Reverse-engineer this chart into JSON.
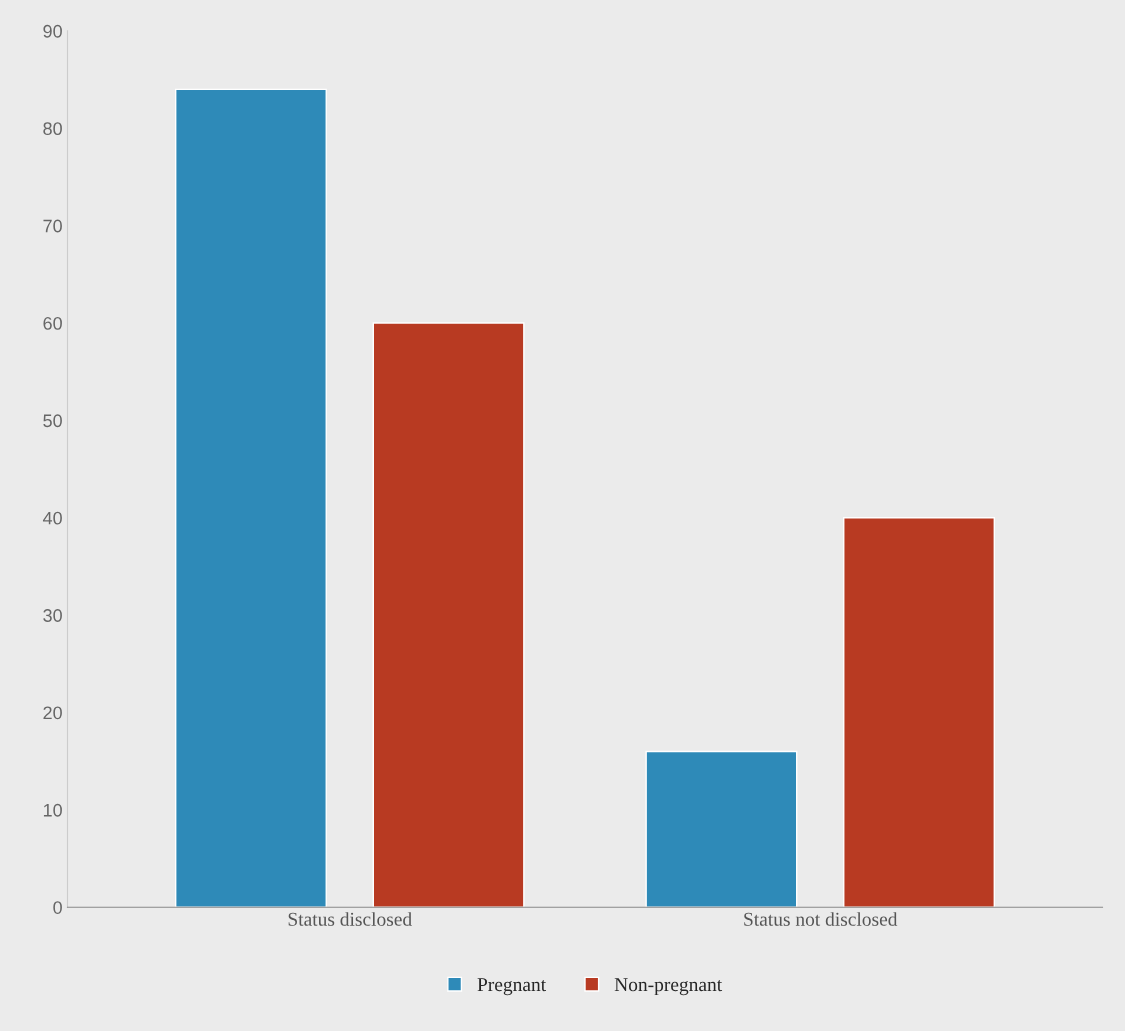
{
  "chart_data": {
    "type": "bar",
    "categories": [
      "Status disclosed",
      "Status not disclosed"
    ],
    "series": [
      {
        "name": "Pregnant",
        "color": "#2e8ab8",
        "values": [
          84,
          16
        ]
      },
      {
        "name": "Non-pregnant",
        "color": "#b83a22",
        "values": [
          60,
          40
        ]
      }
    ],
    "ylim": [
      0,
      90
    ],
    "yticks": [
      0,
      10,
      20,
      30,
      40,
      50,
      60,
      70,
      80,
      90
    ],
    "grid": false,
    "legend": "bottom"
  }
}
